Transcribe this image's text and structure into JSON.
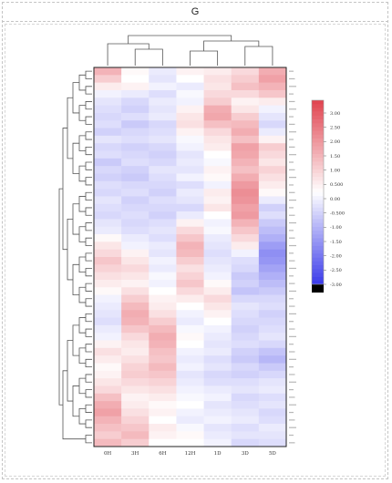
{
  "panel": {
    "letter": "G"
  },
  "chart_data": {
    "type": "heatmap",
    "columns": [
      "0H",
      "3H",
      "6H",
      "12H",
      "1D",
      "3D",
      "5D"
    ],
    "legend": {
      "ticks": [
        "3.00",
        "2.50",
        "2.00",
        "1.50",
        "1.00",
        "0.500",
        "0.00",
        "-0.500",
        "-1.00",
        "-1.50",
        "-2.00",
        "-2.50",
        "-3.00"
      ],
      "range": [
        -3,
        3
      ],
      "colors": {
        "high": "#e0424e",
        "mid": "#ffffff",
        "low": "#3a3aea"
      }
    },
    "values_note": "approximate z-scores read from cell colours, top to bottom; one array per row, one value per column",
    "rows": [
      [
        1.2,
        0.1,
        -0.3,
        0.2,
        0.3,
        0.6,
        1.3
      ],
      [
        0.8,
        0.0,
        -0.4,
        0.0,
        0.5,
        0.8,
        1.5
      ],
      [
        0.3,
        0.2,
        -0.2,
        -0.3,
        0.4,
        1.0,
        1.2
      ],
      [
        -0.2,
        -0.3,
        -0.5,
        -0.1,
        0.6,
        0.6,
        0.9
      ],
      [
        -0.4,
        -0.6,
        -0.3,
        -0.2,
        0.8,
        0.2,
        0.3
      ],
      [
        -0.5,
        -0.7,
        -0.4,
        0.2,
        1.3,
        0.4,
        -0.2
      ],
      [
        -0.6,
        -0.5,
        -0.3,
        0.4,
        1.4,
        0.8,
        -0.4
      ],
      [
        -0.5,
        -0.8,
        -0.6,
        0.5,
        1.0,
        1.1,
        -0.6
      ],
      [
        -0.7,
        -0.6,
        -0.5,
        0.2,
        0.6,
        1.3,
        -0.3
      ],
      [
        -0.4,
        -0.5,
        -0.4,
        -0.1,
        0.4,
        1.0,
        0.2
      ],
      [
        -0.6,
        -0.7,
        -0.6,
        -0.2,
        0.3,
        1.5,
        0.8
      ],
      [
        -0.5,
        -0.6,
        -0.7,
        -0.4,
        0.0,
        1.4,
        0.6
      ],
      [
        -0.8,
        -0.5,
        -0.6,
        -0.3,
        -0.1,
        1.2,
        0.4
      ],
      [
        -0.6,
        -0.7,
        -0.4,
        -0.4,
        0.2,
        1.0,
        0.7
      ],
      [
        -0.7,
        -0.8,
        -0.5,
        -0.2,
        0.1,
        1.3,
        0.5
      ],
      [
        -0.5,
        -0.6,
        -0.6,
        -0.5,
        -0.2,
        1.6,
        0.3
      ],
      [
        -0.6,
        -0.5,
        -0.7,
        -0.3,
        0.3,
        1.8,
        0.1
      ],
      [
        -0.4,
        -0.7,
        -0.5,
        -0.4,
        0.2,
        1.7,
        -0.3
      ],
      [
        -0.5,
        -0.6,
        -0.6,
        -0.6,
        0.4,
        1.5,
        -0.7
      ],
      [
        -0.6,
        -0.5,
        -0.7,
        -0.3,
        0.0,
        1.6,
        -0.5
      ],
      [
        -0.4,
        -0.6,
        -0.5,
        0.2,
        -0.2,
        1.2,
        -0.8
      ],
      [
        -0.3,
        -0.5,
        -0.4,
        0.6,
        -0.1,
        0.9,
        -1.0
      ],
      [
        0.1,
        -0.3,
        -0.5,
        0.9,
        -0.3,
        0.6,
        -1.2
      ],
      [
        0.4,
        -0.2,
        -0.3,
        1.2,
        -0.4,
        0.3,
        -1.5
      ],
      [
        0.6,
        0.2,
        -0.4,
        1.1,
        -0.5,
        -0.2,
        -1.7
      ],
      [
        0.9,
        0.4,
        -0.2,
        0.8,
        -0.4,
        -0.5,
        -1.6
      ],
      [
        0.7,
        0.6,
        -0.3,
        0.5,
        -0.3,
        -0.6,
        -1.4
      ],
      [
        0.5,
        0.4,
        -0.1,
        0.7,
        -0.2,
        -0.8,
        -1.2
      ],
      [
        0.3,
        0.2,
        -0.2,
        0.9,
        0.1,
        -0.7,
        -1.0
      ],
      [
        0.1,
        0.5,
        0.0,
        0.6,
        0.3,
        -0.9,
        -0.8
      ],
      [
        -0.2,
        0.8,
        0.2,
        0.3,
        0.6,
        -0.6,
        -0.6
      ],
      [
        -0.3,
        1.1,
        0.3,
        0.0,
        0.4,
        -0.4,
        -0.5
      ],
      [
        -0.4,
        1.3,
        0.5,
        -0.2,
        0.2,
        -0.5,
        -0.7
      ],
      [
        -0.5,
        1.2,
        0.8,
        -0.3,
        0.0,
        -0.6,
        -0.6
      ],
      [
        -0.3,
        0.9,
        1.1,
        -0.1,
        -0.2,
        -0.7,
        -0.5
      ],
      [
        -0.2,
        0.6,
        1.3,
        0.1,
        -0.3,
        -0.6,
        -0.4
      ],
      [
        0.2,
        0.4,
        1.2,
        0.0,
        -0.4,
        -0.5,
        -0.6
      ],
      [
        0.5,
        0.3,
        1.0,
        -0.2,
        -0.3,
        -0.7,
        -0.9
      ],
      [
        0.3,
        0.5,
        0.9,
        -0.3,
        -0.5,
        -0.8,
        -1.1
      ],
      [
        0.1,
        0.7,
        1.1,
        -0.2,
        -0.4,
        -0.6,
        -0.8
      ],
      [
        0.2,
        0.8,
        0.9,
        -0.4,
        -0.6,
        -0.7,
        -0.6
      ],
      [
        0.4,
        0.6,
        0.7,
        -0.3,
        -0.5,
        -0.5,
        -0.4
      ],
      [
        0.6,
        0.4,
        0.5,
        -0.2,
        -0.3,
        -0.4,
        -0.3
      ],
      [
        1.0,
        0.2,
        0.3,
        -0.1,
        -0.2,
        -0.6,
        -0.5
      ],
      [
        1.3,
        0.3,
        0.1,
        0.0,
        -0.4,
        -0.5,
        -0.4
      ],
      [
        1.5,
        0.5,
        0.2,
        -0.2,
        -0.3,
        -0.4,
        -0.6
      ],
      [
        1.2,
        0.7,
        0.0,
        -0.3,
        -0.2,
        -0.3,
        -0.5
      ],
      [
        1.0,
        0.9,
        0.3,
        -0.1,
        -0.4,
        -0.5,
        -0.3
      ],
      [
        0.8,
        1.1,
        0.2,
        0.1,
        -0.3,
        -0.4,
        -0.4
      ],
      [
        1.1,
        0.8,
        0.0,
        0.0,
        -0.2,
        -0.6,
        -0.5
      ]
    ]
  }
}
